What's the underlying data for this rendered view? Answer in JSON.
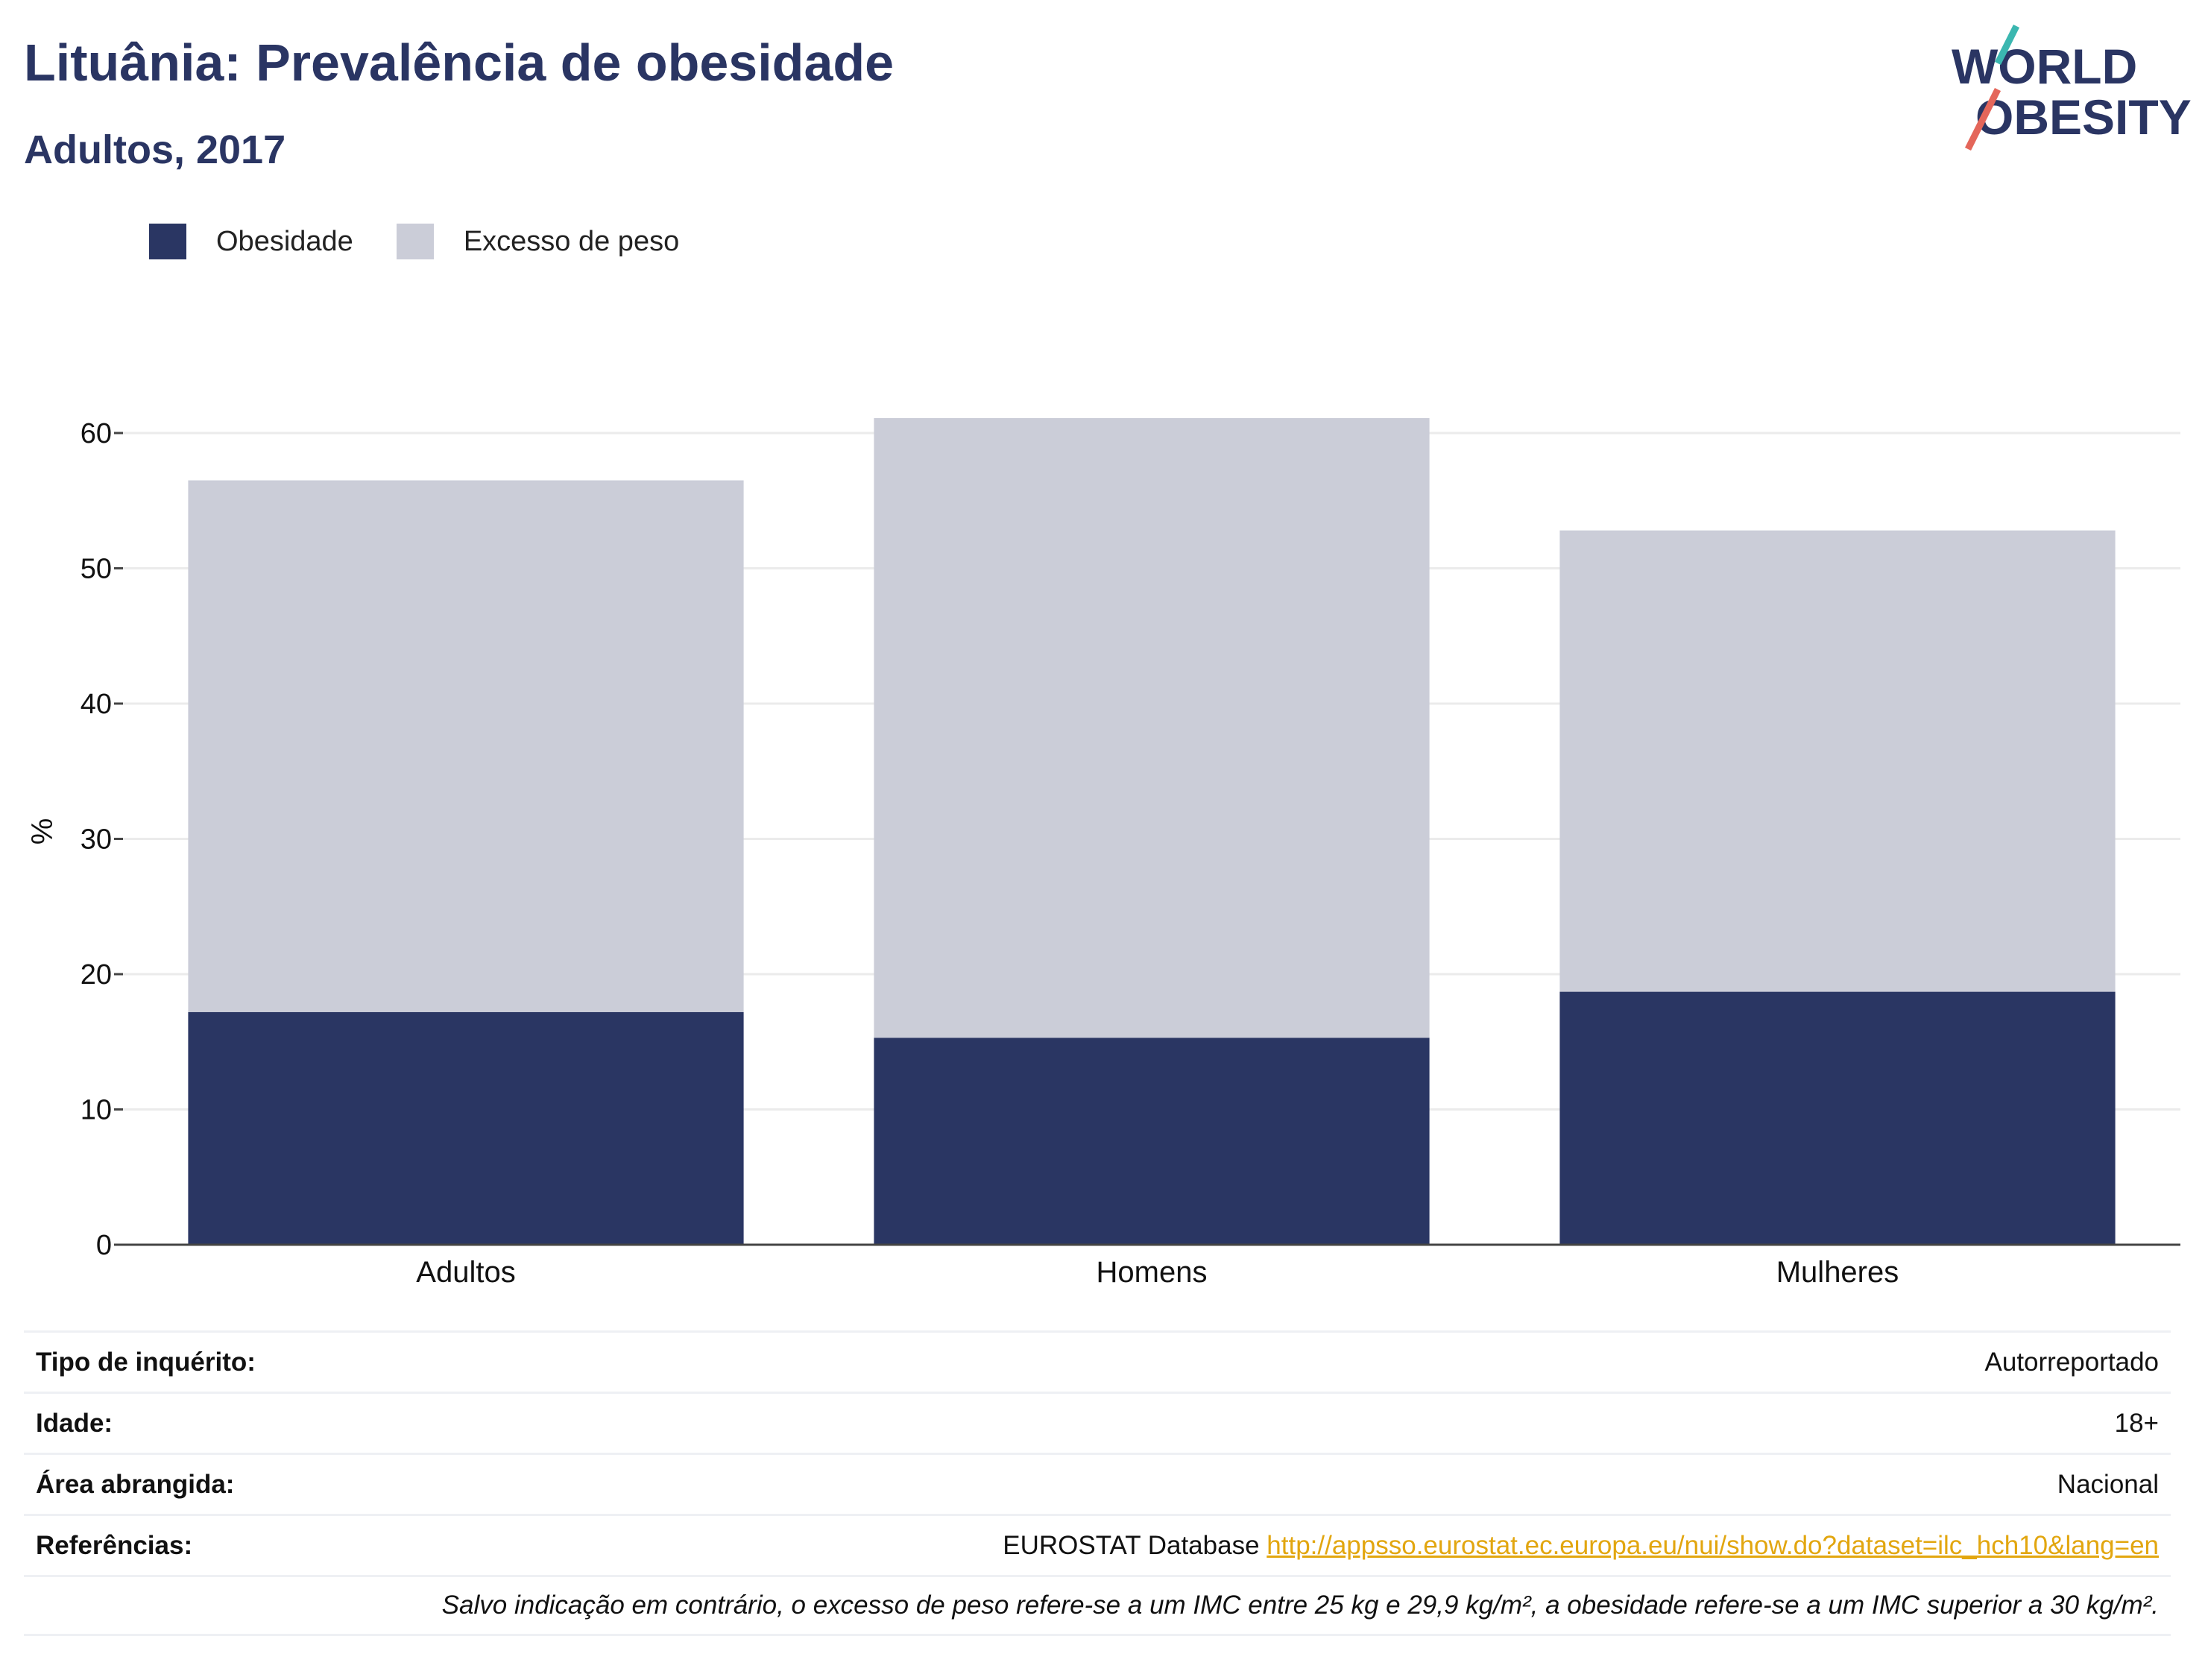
{
  "header": {
    "title": "Lituânia: Prevalência de obesidade",
    "subtitle": "Adultos, 2017"
  },
  "logo": {
    "line1": "WORLD",
    "line2": "OBESITY",
    "accent_teal": "#3bb7b0",
    "accent_red": "#e4665a"
  },
  "legend": [
    {
      "label": "Obesidade",
      "color": "#2a3663"
    },
    {
      "label": "Excesso de peso",
      "color": "#cbcdd8"
    }
  ],
  "chart_data": {
    "type": "bar",
    "stacked": true,
    "categories": [
      "Adultos",
      "Homens",
      "Mulheres"
    ],
    "series": [
      {
        "name": "Obesidade",
        "values": [
          17.2,
          15.3,
          18.7
        ],
        "color": "#2a3663"
      },
      {
        "name": "Excesso de peso",
        "values": [
          39.3,
          45.8,
          34.1
        ],
        "color": "#cbcdd8"
      }
    ],
    "totals": [
      56.5,
      61.1,
      52.8
    ],
    "ylabel": "%",
    "ylim": [
      0,
      61.1
    ],
    "yticks": [
      0,
      10,
      20,
      30,
      40,
      50,
      60
    ],
    "grid": true
  },
  "info": {
    "survey_label": "Tipo de inquérito:",
    "survey_value": "Autorreportado",
    "age_label": "Idade:",
    "age_value": "18+",
    "area_label": "Área abrangida:",
    "area_value": "Nacional",
    "refs_label": "Referências:",
    "refs_source": "EUROSTAT Database",
    "refs_url": "http://appsso.eurostat.ec.europa.eu/nui/show.do?dataset=ilc_hch10&lang=en",
    "note": "Salvo indicação em contrário, o excesso de peso refere-se a um IMC entre 25 kg e 29,9 kg/m², a obesidade refere-se a um IMC superior a 30 kg/m²."
  }
}
